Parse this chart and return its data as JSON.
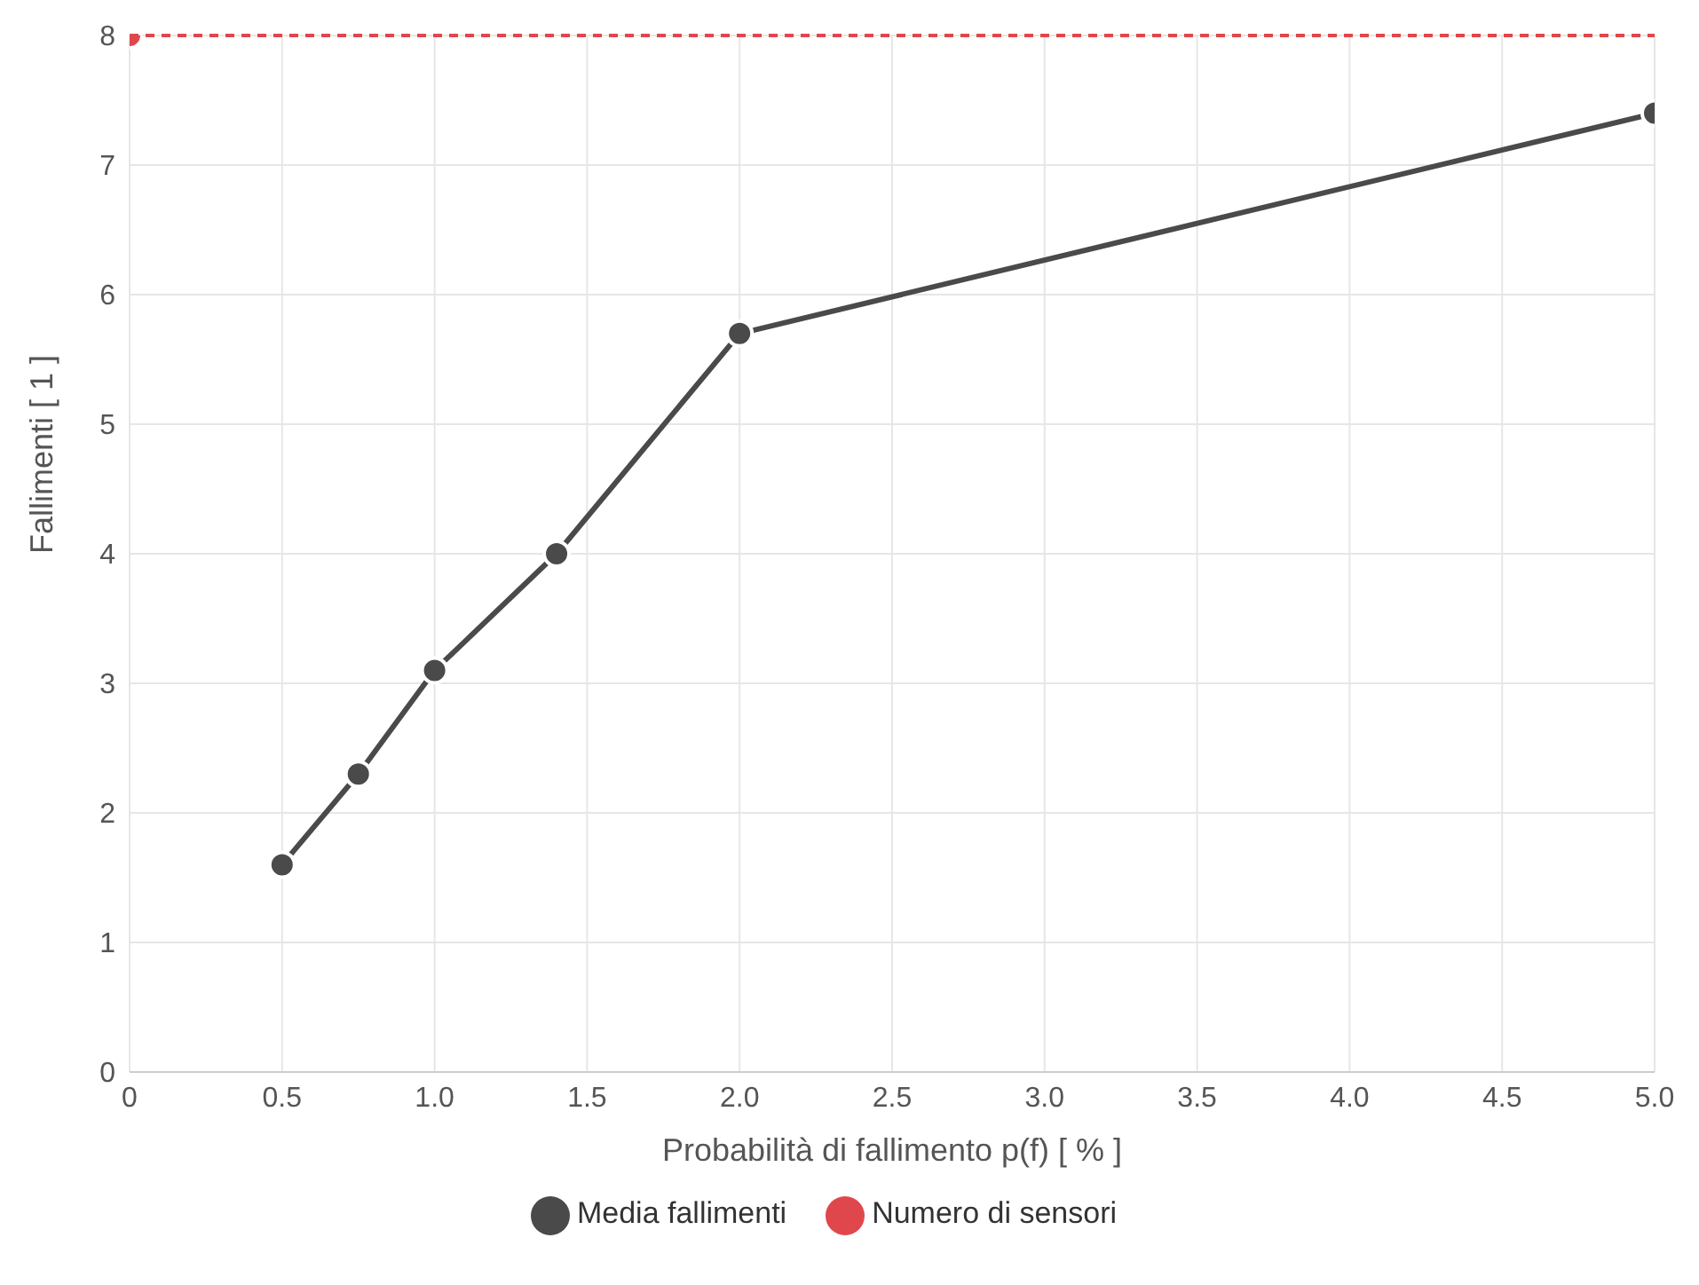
{
  "chart_data": {
    "type": "line",
    "xlabel": "Probabilità di fallimento p(f) [ % ]",
    "ylabel": "Fallimenti [ 1 ]",
    "xlim": [
      0,
      5
    ],
    "xticks": [
      0,
      0.5,
      {
        "value": 1,
        "label": "1.0"
      },
      1.5,
      {
        "value": 2,
        "label": "2.0"
      },
      2.5,
      {
        "value": 3,
        "label": "3.0"
      },
      3.5,
      {
        "value": 4,
        "label": "4.0"
      },
      4.5,
      {
        "value": 5,
        "label": "5.0"
      }
    ],
    "ylim": [
      0,
      8
    ],
    "yticks": [
      0,
      1,
      2,
      3,
      4,
      5,
      6,
      7,
      8
    ],
    "grid": true,
    "legend": "bottom",
    "marker": "circle",
    "line_style": "solid",
    "series": [
      {
        "name": "Media fallimenti",
        "color": "#4a4a4a",
        "x": [
          0.5,
          0.75,
          1,
          1.4,
          2,
          5
        ],
        "values": [
          1.6,
          2.3,
          3.1,
          4.0,
          5.7,
          7.4
        ]
      },
      {
        "name": "Numero di sensori",
        "type": "scatter",
        "color": "#e0474c",
        "x": [
          0
        ],
        "values": [
          8
        ]
      }
    ],
    "ref_lines": [
      {
        "axis": "y",
        "value": 8,
        "color": "#e0474c",
        "line_style": "dashed"
      }
    ]
  }
}
